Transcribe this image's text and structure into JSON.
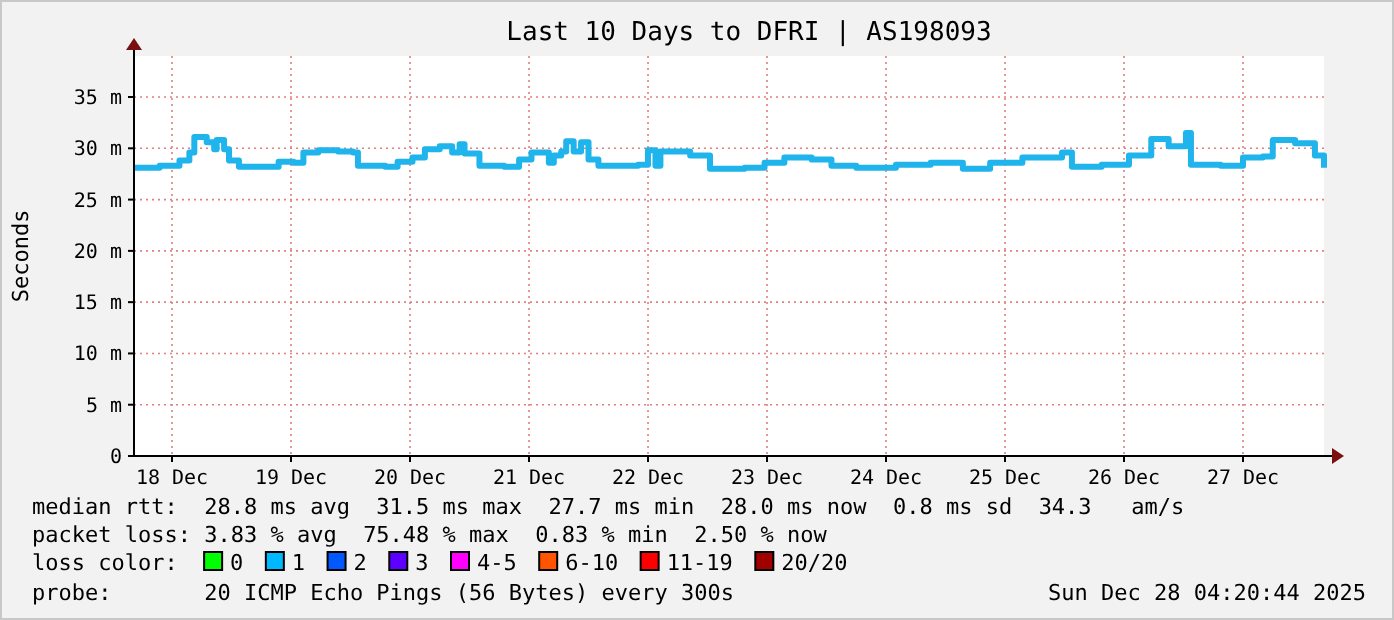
{
  "chart_data": {
    "type": "step",
    "title": "Last 10 Days to DFRI | AS198093",
    "ylabel": "Seconds",
    "xlim": [
      "2025-12-18T04:20",
      "2025-12-28T04:20"
    ],
    "xticks": [
      {
        "value": "2025-12-18T12:00",
        "label": "18 Dec"
      },
      {
        "value": "2025-12-19T12:00",
        "label": "19 Dec"
      },
      {
        "value": "2025-12-20T12:00",
        "label": "20 Dec"
      },
      {
        "value": "2025-12-21T12:00",
        "label": "21 Dec"
      },
      {
        "value": "2025-12-22T12:00",
        "label": "22 Dec"
      },
      {
        "value": "2025-12-23T12:00",
        "label": "23 Dec"
      },
      {
        "value": "2025-12-24T12:00",
        "label": "24 Dec"
      },
      {
        "value": "2025-12-25T12:00",
        "label": "25 Dec"
      },
      {
        "value": "2025-12-26T12:00",
        "label": "26 Dec"
      },
      {
        "value": "2025-12-27T12:00",
        "label": "27 Dec"
      }
    ],
    "ylim": [
      0,
      39
    ],
    "yticks": [
      0,
      {
        "value": 5,
        "label": "5 m"
      },
      {
        "value": 10,
        "label": "10 m"
      },
      {
        "value": 15,
        "label": "15 m"
      },
      {
        "value": 20,
        "label": "20 m"
      },
      {
        "value": 25,
        "label": "25 m"
      },
      {
        "value": 30,
        "label": "30 m"
      },
      {
        "value": 35,
        "label": "35 m"
      }
    ],
    "grid": true,
    "marker": "none",
    "line_style": "solid",
    "x": [
      "2025-12-18T04:20",
      "2025-12-18T09:30",
      "2025-12-18T13:30",
      "2025-12-18T15:30",
      "2025-12-18T16:30",
      "2025-12-18T19:00",
      "2025-12-18T20:30",
      "2025-12-18T21:00",
      "2025-12-18T22:30",
      "2025-12-18T23:30",
      "2025-12-19T01:30",
      "2025-12-19T08:30",
      "2025-12-19T09:30",
      "2025-12-19T12:30",
      "2025-12-19T14:30",
      "2025-12-19T17:30",
      "2025-12-19T21:30",
      "2025-12-20T00:30",
      "2025-12-20T01:30",
      "2025-12-20T07:00",
      "2025-12-20T09:30",
      "2025-12-20T12:30",
      "2025-12-20T15:00",
      "2025-12-20T18:00",
      "2025-12-20T20:30",
      "2025-12-20T22:00",
      "2025-12-20T23:00",
      "2025-12-21T02:00",
      "2025-12-21T07:00",
      "2025-12-21T10:00",
      "2025-12-21T12:30",
      "2025-12-21T16:00",
      "2025-12-21T17:00",
      "2025-12-21T18:30",
      "2025-12-21T19:30",
      "2025-12-21T21:00",
      "2025-12-21T22:30",
      "2025-12-22T00:00",
      "2025-12-22T02:00",
      "2025-12-22T10:00",
      "2025-12-22T12:00",
      "2025-12-22T13:30",
      "2025-12-22T14:30",
      "2025-12-22T20:30",
      "2025-12-22T23:00",
      "2025-12-23T00:30",
      "2025-12-23T07:30",
      "2025-12-23T11:30",
      "2025-12-23T15:30",
      "2025-12-23T21:00",
      "2025-12-24T01:00",
      "2025-12-24T06:00",
      "2025-12-24T14:00",
      "2025-12-24T21:00",
      "2025-12-25T03:30",
      "2025-12-25T09:00",
      "2025-12-25T15:30",
      "2025-12-25T23:30",
      "2025-12-26T01:30",
      "2025-12-26T07:30",
      "2025-12-26T13:00",
      "2025-12-26T17:30",
      "2025-12-26T21:00",
      "2025-12-27T00:30",
      "2025-12-27T01:30",
      "2025-12-27T07:30",
      "2025-12-27T12:00",
      "2025-12-27T16:00",
      "2025-12-27T18:00",
      "2025-12-27T22:30",
      "2025-12-28T02:30",
      "2025-12-28T04:20"
    ],
    "series": [
      {
        "color": "#1fb4ec",
        "values": [
          28.1,
          28.3,
          28.8,
          29.6,
          31.1,
          30.6,
          29.9,
          30.8,
          29.9,
          28.8,
          28.2,
          28.2,
          28.7,
          28.6,
          29.6,
          29.8,
          29.7,
          29.6,
          28.3,
          28.2,
          28.7,
          29.1,
          29.9,
          30.2,
          29.6,
          30.4,
          29.5,
          28.3,
          28.2,
          28.9,
          29.6,
          28.6,
          29.3,
          29.7,
          30.7,
          29.7,
          30.6,
          28.9,
          28.3,
          28.4,
          29.8,
          28.3,
          29.7,
          29.3,
          29.3,
          28.0,
          28.1,
          28.6,
          29.1,
          28.9,
          28.3,
          28.1,
          28.4,
          28.6,
          28.0,
          28.6,
          29.1,
          29.6,
          28.2,
          28.4,
          29.3,
          30.9,
          30.2,
          31.5,
          28.4,
          28.3,
          29.1,
          29.2,
          30.8,
          30.5,
          29.3,
          28.1
        ]
      }
    ],
    "annotations": [
      "median rtt:  28.8 ms avg  31.5 ms max  27.7 ms min  28.0 ms now  0.8 ms sd  34.3   am/s",
      "packet loss: 3.83 % avg  75.48 % max  0.83 % min  2.50 % now",
      "loss color:",
      "0",
      "1",
      "2",
      "3",
      "4-5",
      "6-10",
      "11-19",
      "20/20",
      "probe:       20 ICMP Echo Pings (56 Bytes) every 300s",
      "Sun Dec 28 04:20:44 2025"
    ]
  }
}
